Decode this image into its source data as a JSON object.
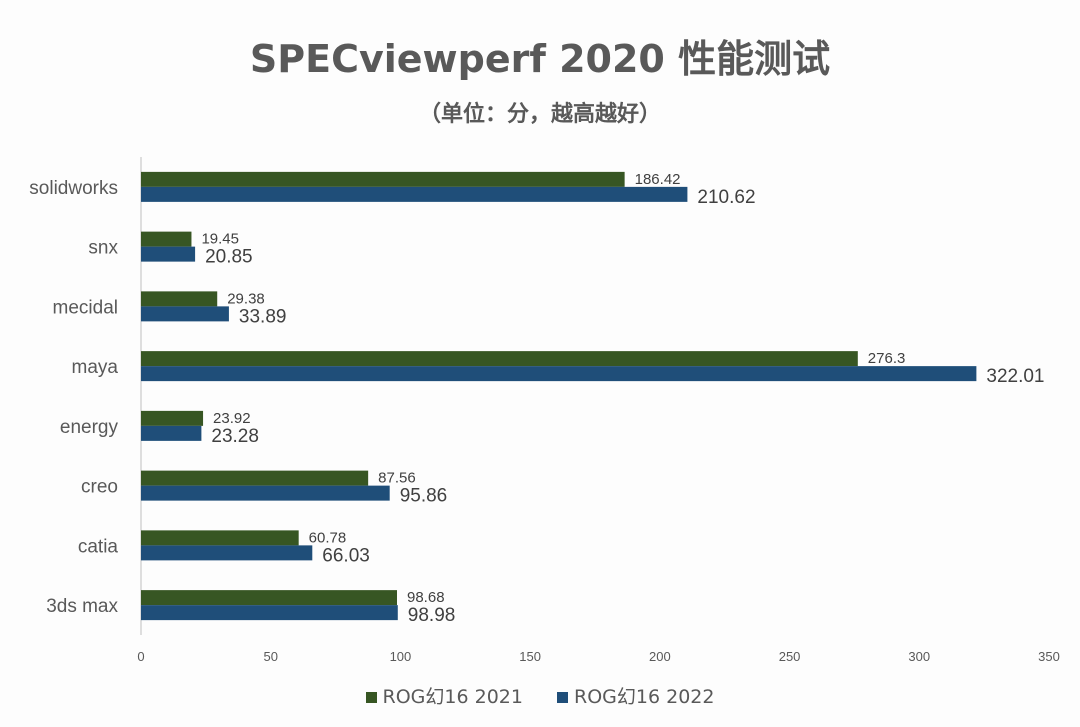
{
  "chart_data": {
    "type": "bar",
    "orientation": "horizontal",
    "title": "SPECviewperf 2020 性能测试",
    "subtitle": "（单位：分，越高越好）",
    "categories": [
      "solidworks",
      "snx",
      "mecidal",
      "maya",
      "energy",
      "creo",
      "catia",
      "3ds max"
    ],
    "series": [
      {
        "name": "ROG幻16 2021",
        "color": "#375623",
        "values": [
          186.42,
          19.45,
          29.38,
          276.3,
          23.92,
          87.56,
          60.78,
          98.68
        ],
        "labels": [
          "186.42",
          "19.45",
          "29.38",
          "276.3",
          "23.92",
          "87.56",
          "60.78",
          "98.68"
        ]
      },
      {
        "name": "ROG幻16 2022",
        "color": "#1f4e79",
        "values": [
          210.62,
          20.85,
          33.89,
          322.01,
          23.28,
          95.86,
          66.03,
          98.98
        ],
        "labels": [
          "210.62",
          "20.85",
          "33.89",
          "322.01",
          "23.28",
          "95.86",
          "66.03",
          "98.98"
        ]
      }
    ],
    "xlim": [
      0,
      350
    ],
    "xticks": [
      "0",
      "50",
      "100",
      "150",
      "200",
      "250",
      "300",
      "350"
    ],
    "grid": false,
    "legend": "bottom"
  }
}
